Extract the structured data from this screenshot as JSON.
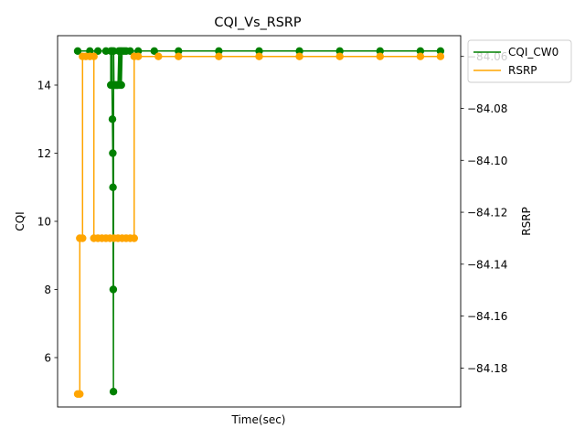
{
  "chart_data": {
    "type": "line",
    "title": "CQI_Vs_RSRP",
    "xlabel": "Time(sec)",
    "ylabel_left": "CQI",
    "ylabel_right": "RSRP",
    "x_ticks_visible": false,
    "grid": false,
    "legend": {
      "position": "top-right, outside plot",
      "entries": [
        "CQI_CW0",
        "RSRP"
      ]
    },
    "x_range": [
      0,
      100
    ],
    "left_axis": {
      "ylim": [
        4.55,
        15.45
      ],
      "ticks": [
        6,
        8,
        10,
        12,
        14
      ]
    },
    "right_axis": {
      "ylim": [
        -84.195,
        -84.052
      ],
      "ticks": [
        -84.18,
        -84.16,
        -84.14,
        -84.12,
        -84.1,
        -84.08,
        -84.06
      ]
    },
    "series": [
      {
        "name": "CQI_CW0",
        "axis": "left",
        "color": "#008000",
        "marker": "circle",
        "x": [
          5,
          8,
          10,
          12,
          13.2,
          13.2,
          13.5,
          13.5,
          13.6,
          13.7,
          13.75,
          13.8,
          13.85,
          13.9,
          14.0,
          14.2,
          14.4,
          14.6,
          14.8,
          15.0,
          15.2,
          15.4,
          15.6,
          15.8,
          16.0,
          16.5,
          17,
          18,
          20,
          24,
          30,
          40,
          50,
          60,
          70,
          80,
          90,
          95
        ],
        "y": [
          15,
          15,
          15,
          15,
          15,
          14,
          15,
          14,
          13,
          12,
          11,
          8,
          5,
          15,
          14,
          14,
          14,
          14,
          14,
          14,
          15,
          14,
          15,
          14,
          15,
          15,
          15,
          15,
          15,
          15,
          15,
          15,
          15,
          15,
          15,
          15,
          15,
          15
        ]
      },
      {
        "name": "RSRP",
        "axis": "right",
        "color": "#ffa500",
        "marker": "circle",
        "x": [
          5,
          5.5,
          5.5,
          6.2,
          6.2,
          7,
          8,
          9,
          9,
          10,
          11,
          12,
          13,
          14,
          15,
          16,
          17,
          18,
          19,
          19,
          20,
          25,
          30,
          40,
          50,
          60,
          70,
          80,
          90,
          95
        ],
        "y": [
          -84.19,
          -84.19,
          -84.13,
          -84.13,
          -84.06,
          -84.06,
          -84.06,
          -84.06,
          -84.13,
          -84.13,
          -84.13,
          -84.13,
          -84.13,
          -84.13,
          -84.13,
          -84.13,
          -84.13,
          -84.13,
          -84.13,
          -84.06,
          -84.06,
          -84.06,
          -84.06,
          -84.06,
          -84.06,
          -84.06,
          -84.06,
          -84.06,
          -84.06,
          -84.06
        ]
      }
    ]
  }
}
